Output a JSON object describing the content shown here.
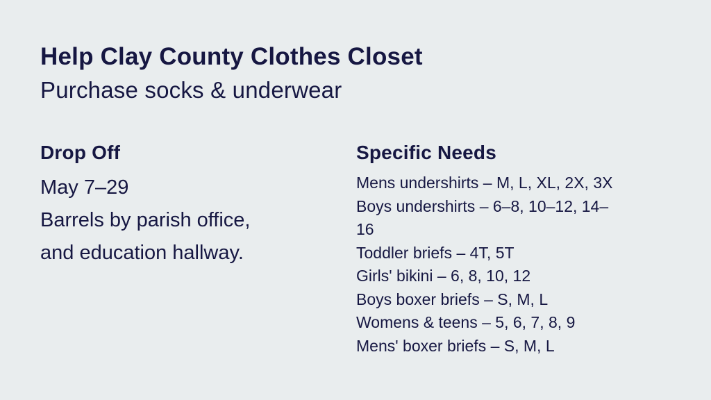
{
  "page": {
    "background_color": "#e9edee",
    "text_color": "#161742"
  },
  "header": {
    "title": "Help Clay County Clothes Closet",
    "subtitle": "Purchase socks & underwear"
  },
  "drop_off": {
    "heading": "Drop Off",
    "lines": [
      "May 7–29",
      "Barrels by parish office,",
      "and education hallway."
    ]
  },
  "specific_needs": {
    "heading": "Specific Needs",
    "items": [
      "Mens undershirts – M, L, XL, 2X, 3X",
      "Boys undershirts – 6–8, 10–12, 14–16",
      "Toddler briefs – 4T, 5T",
      "Girls' bikini – 6, 8, 10, 12",
      "Boys boxer briefs – S, M, L",
      "Womens & teens – 5, 6, 7, 8, 9",
      "Mens' boxer briefs – S, M, L"
    ]
  }
}
